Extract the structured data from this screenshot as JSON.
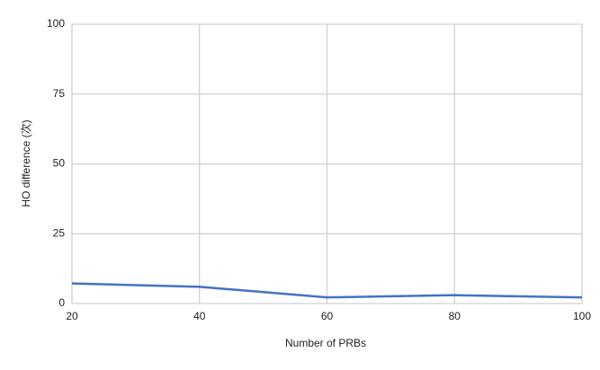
{
  "chart_data": {
    "type": "line",
    "x_label": "Number of PRBs",
    "y_label": "HO difference (次)",
    "x": [
      20,
      40,
      60,
      80,
      100
    ],
    "series": [
      {
        "color": "#4472c4",
        "values": [
          7.2,
          6,
          2.2,
          3,
          2.2
        ]
      }
    ],
    "xlim": [
      20,
      100
    ],
    "xticks": [
      20,
      40,
      60,
      80,
      100
    ],
    "ylim": [
      0,
      100
    ],
    "yticks": [
      0,
      25,
      50,
      75,
      100
    ],
    "grid": true
  }
}
